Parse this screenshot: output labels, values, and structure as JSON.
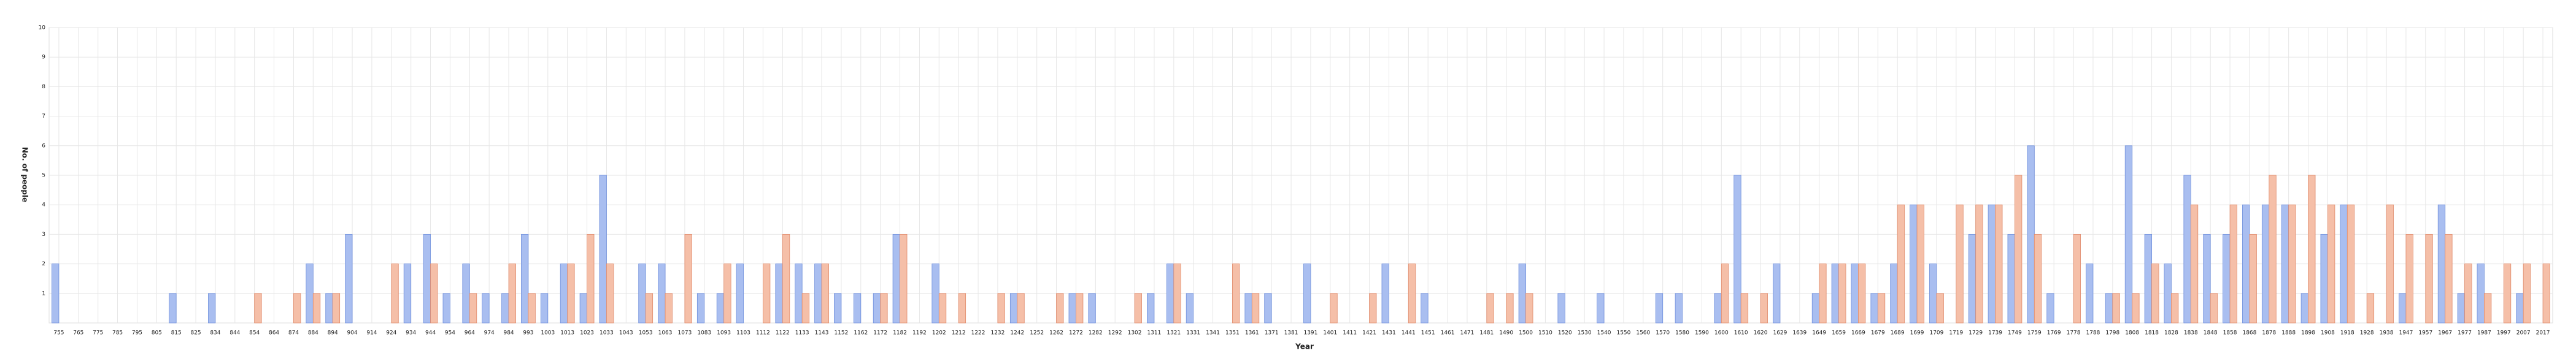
{
  "chart_data": {
    "type": "bar",
    "x_label": "Year",
    "y_label": "No. of people",
    "categories": [
      "755",
      "765",
      "775",
      "785",
      "795",
      "805",
      "815",
      "825",
      "834",
      "844",
      "854",
      "864",
      "874",
      "884",
      "894",
      "904",
      "914",
      "924",
      "934",
      "944",
      "954",
      "964",
      "974",
      "984",
      "993",
      "1003",
      "1013",
      "1023",
      "1033",
      "1043",
      "1053",
      "1063",
      "1073",
      "1083",
      "1093",
      "1103",
      "1112",
      "1122",
      "1133",
      "1143",
      "1152",
      "1162",
      "1172",
      "1182",
      "1192",
      "1202",
      "1212",
      "1222",
      "1232",
      "1242",
      "1252",
      "1262",
      "1272",
      "1282",
      "1292",
      "1302",
      "1311",
      "1321",
      "1331",
      "1341",
      "1351",
      "1361",
      "1371",
      "1381",
      "1391",
      "1401",
      "1411",
      "1421",
      "1431",
      "1441",
      "1451",
      "1461",
      "1471",
      "1481",
      "1490",
      "1500",
      "1510",
      "1520",
      "1530",
      "1540",
      "1550",
      "1560",
      "1570",
      "1580",
      "1590",
      "1600",
      "1610",
      "1620",
      "1629",
      "1639",
      "1649",
      "1659",
      "1669",
      "1679",
      "1689",
      "1699",
      "1709",
      "1719",
      "1729",
      "1739",
      "1749",
      "1759",
      "1769",
      "1778",
      "1788",
      "1798",
      "1808",
      "1818",
      "1828",
      "1838",
      "1848",
      "1858",
      "1868",
      "1878",
      "1888",
      "1898",
      "1908",
      "1918",
      "1928",
      "1938",
      "1947",
      "1957",
      "1967",
      "1977",
      "1987",
      "1997",
      "2007",
      "2017"
    ],
    "series": [
      {
        "color": "#a9bef0",
        "values": [
          2,
          0,
          0,
          0,
          0,
          0,
          1,
          0,
          1,
          0,
          0,
          0,
          0,
          2,
          1,
          3,
          0,
          0,
          2,
          3,
          1,
          2,
          1,
          1,
          3,
          1,
          2,
          1,
          5,
          0,
          2,
          2,
          0,
          1,
          1,
          2,
          0,
          2,
          2,
          2,
          1,
          1,
          1,
          3,
          0,
          2,
          0,
          0,
          0,
          1,
          0,
          0,
          1,
          1,
          0,
          0,
          1,
          2,
          1,
          0,
          0,
          1,
          1,
          0,
          2,
          0,
          0,
          0,
          2,
          0,
          1,
          0,
          0,
          0,
          0,
          2,
          0,
          1,
          0,
          1,
          0,
          0,
          1,
          1,
          0,
          1,
          5,
          0,
          2,
          0,
          1,
          2,
          2,
          1,
          2,
          4,
          2,
          0,
          3,
          4,
          3,
          6,
          1,
          0,
          2,
          1,
          6,
          3,
          2,
          5,
          3,
          3,
          4,
          4,
          4,
          1,
          3,
          4,
          0,
          0,
          1,
          0,
          4,
          1,
          2,
          0,
          1,
          0
        ]
      },
      {
        "color": "#f5bfa8",
        "values": [
          0,
          0,
          0,
          0,
          0,
          0,
          0,
          0,
          0,
          0,
          1,
          0,
          1,
          1,
          1,
          0,
          0,
          2,
          0,
          2,
          0,
          1,
          0,
          2,
          1,
          0,
          2,
          3,
          2,
          0,
          1,
          1,
          3,
          0,
          2,
          0,
          2,
          3,
          1,
          2,
          0,
          0,
          1,
          3,
          0,
          1,
          1,
          0,
          1,
          1,
          0,
          1,
          1,
          0,
          0,
          1,
          0,
          2,
          0,
          0,
          2,
          1,
          0,
          0,
          0,
          1,
          0,
          1,
          0,
          2,
          0,
          0,
          0,
          1,
          1,
          1,
          0,
          0,
          0,
          0,
          0,
          0,
          0,
          0,
          0,
          2,
          1,
          1,
          0,
          0,
          2,
          2,
          2,
          1,
          4,
          4,
          1,
          4,
          4,
          4,
          5,
          3,
          0,
          3,
          0,
          1,
          1,
          2,
          1,
          4,
          1,
          4,
          3,
          5,
          4,
          5,
          4,
          4,
          1,
          4,
          3,
          3,
          3,
          2,
          1,
          2,
          2,
          2
        ]
      }
    ],
    "ylim": [
      0,
      10
    ],
    "yticks": [
      1,
      2,
      3,
      4,
      5,
      6,
      7,
      8,
      9,
      10
    ],
    "grid": true
  }
}
